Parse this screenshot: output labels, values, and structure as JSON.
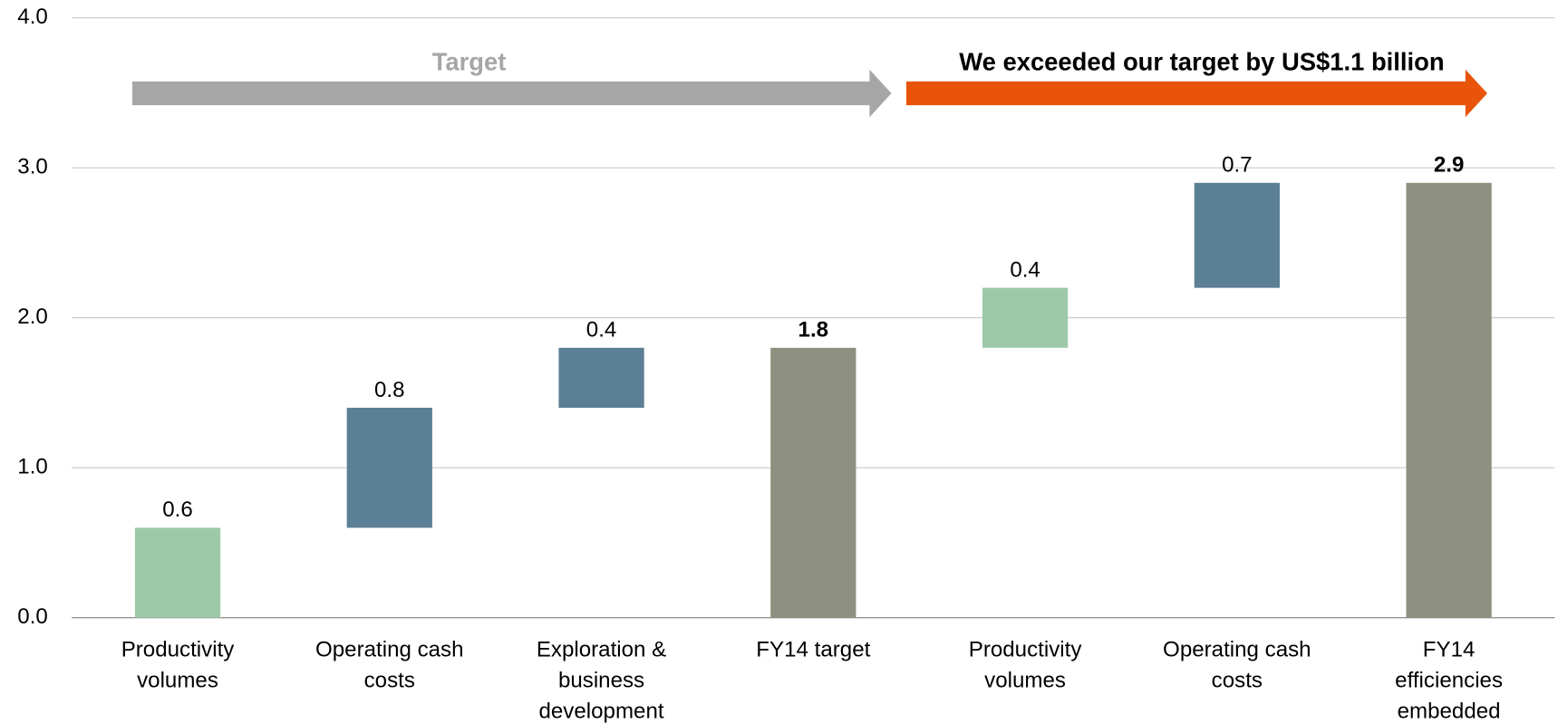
{
  "chart_data": {
    "type": "waterfall",
    "categories": [
      "Productivity\nvolumes",
      "Operating cash\ncosts",
      "Exploration &\nbusiness\ndevelopment",
      "FY14 target",
      "Productivity\nvolumes",
      "Operating cash\ncosts",
      "FY14\nefficiencies\nembedded"
    ],
    "values": [
      0.6,
      0.8,
      0.4,
      1.8,
      0.4,
      0.7,
      2.9
    ],
    "bar_kinds": [
      "step",
      "step",
      "step",
      "total",
      "step",
      "step",
      "total"
    ],
    "colors": [
      "#9dc9a9",
      "#5b7f94",
      "#5b7f94",
      "#8f9180",
      "#9dc9a9",
      "#5b7f94",
      "#8f9180"
    ],
    "ylim": [
      0,
      4
    ],
    "yticks": [
      {
        "value": 0,
        "label": "0.0"
      },
      {
        "value": 1,
        "label": "1.0"
      },
      {
        "value": 2,
        "label": "2.0"
      },
      {
        "value": 3,
        "label": "3.0"
      },
      {
        "value": 4,
        "label": "4.0"
      }
    ],
    "grid": true,
    "annotations": [
      {
        "text": "Target",
        "color": "#a6a6a6",
        "text_color": "#a6a6a6"
      },
      {
        "text": "We exceeded our target by US$1.1 billion",
        "color": "#e8540a",
        "text_color": "#000000"
      }
    ]
  }
}
